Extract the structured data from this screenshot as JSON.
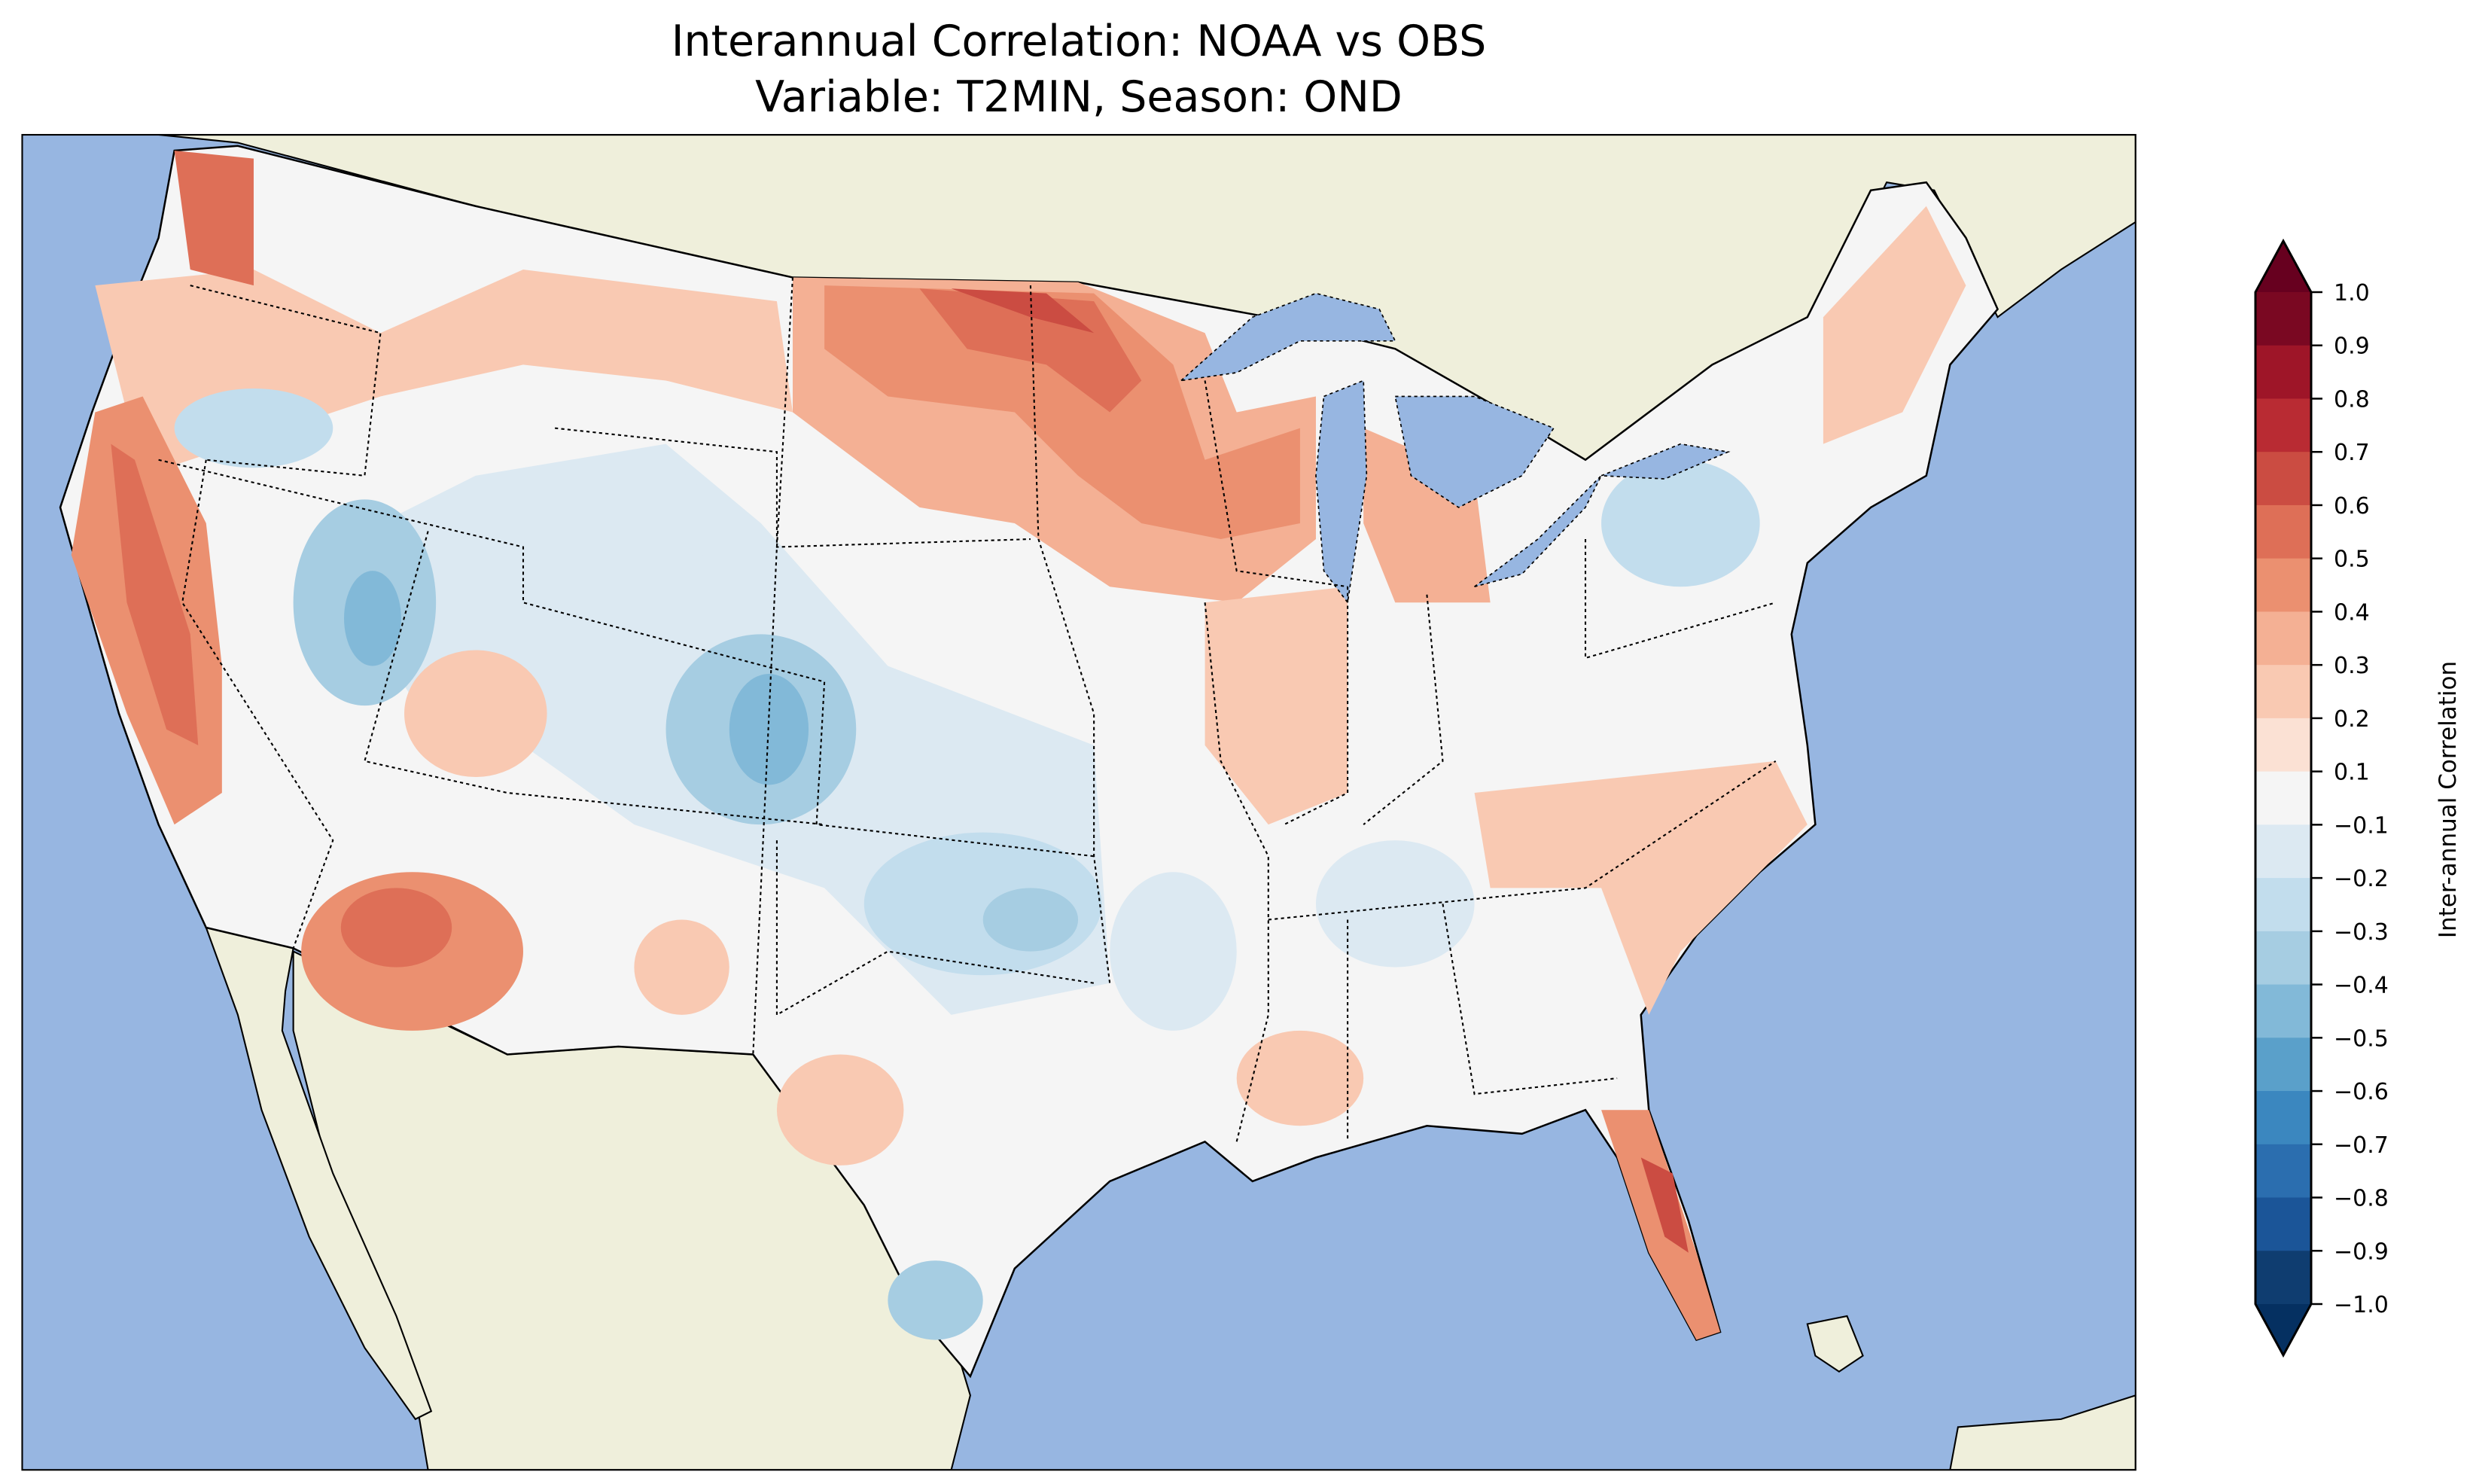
{
  "chart_data": {
    "type": "heatmap",
    "subtype": "filled-contour map",
    "title_line1": "Interannual Correlation: NOAA vs OBS",
    "title_line2": "Variable: T2MIN, Season: OND",
    "colorbar": {
      "label": "Inter-annual Correlation",
      "range": [
        -1.0,
        1.0
      ],
      "extend": "both",
      "ticks": [
        "1.0",
        "0.9",
        "0.8",
        "0.7",
        "0.6",
        "0.5",
        "0.4",
        "0.3",
        "0.2",
        "0.1",
        "−0.1",
        "−0.2",
        "−0.3",
        "−0.4",
        "−0.5",
        "−0.6",
        "−0.7",
        "−0.8",
        "−0.9",
        "−1.0"
      ],
      "bin_colors": [
        "#7a0822",
        "#9e1528",
        "#b92b33",
        "#cb4c42",
        "#de6f57",
        "#eb9070",
        "#f4b094",
        "#f9c9b2",
        "#fbe1d4",
        "#f5f5f5",
        "#dce9f2",
        "#c2dded",
        "#a6cde2",
        "#82b9d8",
        "#5aa0ca",
        "#3b87bf",
        "#2b6eaf",
        "#1b5598",
        "#0f3d70"
      ],
      "over_color": "#67001f",
      "under_color": "#053061"
    },
    "map": {
      "ocean_color": "#97b6e1",
      "land_color": "#efefdb"
    }
  }
}
